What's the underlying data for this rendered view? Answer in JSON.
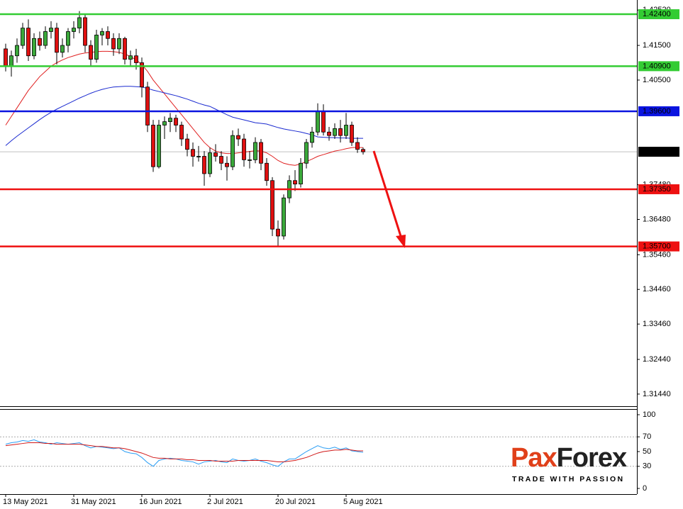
{
  "chart_data": {
    "type": "candlestick",
    "categories": [
      "13 May 2021",
      null,
      null,
      null,
      null,
      null,
      null,
      null,
      null,
      null,
      null,
      null,
      "31 May 2021",
      null,
      null,
      null,
      null,
      null,
      null,
      null,
      null,
      null,
      null,
      null,
      "16 Jun 2021",
      null,
      null,
      null,
      null,
      null,
      null,
      null,
      null,
      null,
      null,
      null,
      "2 Jul 2021",
      null,
      null,
      null,
      null,
      null,
      null,
      null,
      null,
      null,
      null,
      null,
      "20 Jul 2021",
      null,
      null,
      null,
      null,
      null,
      null,
      null,
      null,
      null,
      null,
      null,
      "5 Aug 2021",
      null,
      null,
      null
    ],
    "open": [
      1.414,
      1.409,
      1.412,
      1.415,
      1.42,
      1.412,
      1.417,
      1.415,
      1.419,
      1.42,
      1.413,
      1.415,
      1.419,
      1.42,
      1.423,
      1.415,
      1.411,
      1.418,
      1.419,
      1.417,
      1.414,
      1.417,
      1.411,
      1.412,
      1.41,
      1.403,
      1.392,
      1.38,
      1.392,
      1.393,
      1.394,
      1.392,
      1.388,
      1.385,
      1.383,
      1.383,
      1.378,
      1.384,
      1.383,
      1.381,
      1.38,
      1.389,
      1.388,
      1.382,
      1.382,
      1.387,
      1.381,
      1.376,
      1.362,
      1.36,
      1.371,
      1.376,
      1.375,
      1.381,
      1.387,
      1.39,
      1.396,
      1.39,
      1.389,
      1.391,
      1.389,
      1.392,
      1.387,
      1.385
    ],
    "high": [
      1.4155,
      1.4135,
      1.417,
      1.4215,
      1.4225,
      1.4185,
      1.419,
      1.4205,
      1.422,
      1.4215,
      1.417,
      1.42,
      1.422,
      1.4249,
      1.424,
      1.4165,
      1.4195,
      1.42,
      1.4205,
      1.4185,
      1.4185,
      1.4175,
      1.4135,
      1.414,
      1.4115,
      1.4045,
      1.3935,
      1.3935,
      1.3945,
      1.3955,
      1.395,
      1.393,
      1.3895,
      1.387,
      1.386,
      1.3845,
      1.3855,
      1.3865,
      1.3845,
      1.383,
      1.3905,
      1.391,
      1.3895,
      1.3845,
      1.3885,
      1.388,
      1.3825,
      1.377,
      1.3645,
      1.372,
      1.3775,
      1.379,
      1.3825,
      1.388,
      1.3915,
      1.3983,
      1.398,
      1.3915,
      1.3925,
      1.3935,
      1.3955,
      1.393,
      1.3885,
      1.3855
    ],
    "low": [
      1.4075,
      1.406,
      1.41,
      1.414,
      1.4105,
      1.411,
      1.4135,
      1.414,
      1.417,
      1.4095,
      1.4115,
      1.413,
      1.417,
      1.4185,
      1.413,
      1.409,
      1.41,
      1.415,
      1.415,
      1.412,
      1.4125,
      1.4095,
      1.409,
      1.408,
      1.4,
      1.39,
      1.3785,
      1.3795,
      1.388,
      1.39,
      1.39,
      1.386,
      1.383,
      1.38,
      1.3815,
      1.3745,
      1.377,
      1.3815,
      1.379,
      1.376,
      1.379,
      1.386,
      1.38,
      1.3795,
      1.381,
      1.379,
      1.3745,
      1.36,
      1.3571,
      1.359,
      1.3695,
      1.373,
      1.374,
      1.3795,
      1.3855,
      1.389,
      1.389,
      1.3875,
      1.388,
      1.387,
      1.388,
      1.386,
      1.384,
      1.3835
    ],
    "close": [
      1.409,
      1.412,
      1.415,
      1.42,
      1.412,
      1.417,
      1.415,
      1.419,
      1.42,
      1.413,
      1.415,
      1.419,
      1.42,
      1.423,
      1.415,
      1.411,
      1.418,
      1.419,
      1.417,
      1.414,
      1.417,
      1.411,
      1.412,
      1.41,
      1.403,
      1.392,
      1.38,
      1.392,
      1.393,
      1.394,
      1.392,
      1.388,
      1.385,
      1.383,
      1.383,
      1.378,
      1.384,
      1.383,
      1.381,
      1.38,
      1.389,
      1.388,
      1.382,
      1.382,
      1.387,
      1.381,
      1.376,
      1.362,
      1.36,
      1.371,
      1.376,
      1.375,
      1.381,
      1.387,
      1.39,
      1.396,
      1.39,
      1.389,
      1.391,
      1.389,
      1.392,
      1.387,
      1.385,
      1.3843
    ],
    "up_color": "#3aa83a",
    "down_color": "#e01010",
    "moving_averages": [
      {
        "color": "#e02020",
        "values": [
          1.392,
          1.3945,
          1.397,
          1.3995,
          1.402,
          1.404,
          1.406,
          1.4075,
          1.409,
          1.41,
          1.4108,
          1.4115,
          1.412,
          1.4125,
          1.4128,
          1.413,
          1.4132,
          1.4133,
          1.4133,
          1.4132,
          1.413,
          1.4125,
          1.4118,
          1.4108,
          1.4095,
          1.4075,
          1.405,
          1.403,
          1.401,
          1.399,
          1.397,
          1.395,
          1.393,
          1.391,
          1.389,
          1.387,
          1.3855,
          1.3845,
          1.384,
          1.3838,
          1.3838,
          1.384,
          1.3842,
          1.3844,
          1.3846,
          1.3845,
          1.384,
          1.383,
          1.3818,
          1.381,
          1.3806,
          1.3804,
          1.3808,
          1.3815,
          1.3822,
          1.383,
          1.3835,
          1.384,
          1.3845,
          1.3848,
          1.3852,
          1.3855,
          1.3856,
          1.3855
        ]
      },
      {
        "color": "#1a2ad0",
        "values": [
          1.3861,
          1.3875,
          1.3888,
          1.39,
          1.3912,
          1.3924,
          1.3936,
          1.3947,
          1.3957,
          1.3966,
          1.3974,
          1.3982,
          1.399,
          1.3998,
          1.4005,
          1.4012,
          1.4018,
          1.4023,
          1.4027,
          1.403,
          1.4031,
          1.4032,
          1.4032,
          1.4031,
          1.403,
          1.4026,
          1.4021,
          1.4017,
          1.4013,
          1.4009,
          1.4005,
          1.4,
          1.3995,
          1.3989,
          1.3983,
          1.3978,
          1.3974,
          1.3966,
          1.3958,
          1.395,
          1.3943,
          1.3939,
          1.3935,
          1.3931,
          1.3927,
          1.3925,
          1.3923,
          1.3918,
          1.3913,
          1.3909,
          1.3906,
          1.3903,
          1.39,
          1.3896,
          1.3892,
          1.3886,
          1.3885,
          1.3884,
          1.3884,
          1.3883,
          1.3883,
          1.3882,
          1.3882,
          1.3882
        ]
      }
    ],
    "ylim": [
      1.3109,
      1.4281
    ],
    "yticks": [
      {
        "value": 1.4252,
        "label": "1.42520"
      },
      {
        "value": 1.415,
        "label": "1.41500"
      },
      {
        "value": 1.405,
        "label": "1.40500"
      },
      {
        "value": 1.3748,
        "label": "1.37480"
      },
      {
        "value": 1.3648,
        "label": "1.36480"
      },
      {
        "value": 1.3546,
        "label": "1.35460"
      },
      {
        "value": 1.3446,
        "label": "1.34460"
      },
      {
        "value": 1.3346,
        "label": "1.33460"
      },
      {
        "value": 1.3244,
        "label": "1.32440"
      },
      {
        "value": 1.3144,
        "label": "1.31440"
      }
    ],
    "levels": [
      {
        "value": 1.424,
        "label": "1.42400",
        "color": "#33cc33"
      },
      {
        "value": 1.409,
        "label": "1.40900",
        "color": "#33cc33"
      },
      {
        "value": 1.396,
        "label": "1.39600",
        "color": "#0a14e0"
      },
      {
        "value": 1.3735,
        "label": "1.37350",
        "color": "#ee1111"
      },
      {
        "value": 1.357,
        "label": "1.35700",
        "color": "#ee1111"
      }
    ],
    "last_price": 1.38431,
    "oscillator": {
      "ylim": [
        -7.7,
        107.7
      ],
      "yticks": [
        0,
        30,
        50,
        70,
        100
      ],
      "dotted_levels": [
        30,
        70
      ],
      "series": [
        {
          "color": "#2a9df4",
          "values": [
            60,
            62,
            63,
            65,
            64,
            66,
            63,
            62,
            60,
            62,
            61,
            60,
            61,
            62,
            58,
            55,
            57,
            56,
            55,
            54,
            55,
            50,
            48,
            47,
            42,
            35,
            30,
            38,
            40,
            41,
            40,
            38,
            37,
            36,
            33,
            36,
            37,
            38,
            36,
            35,
            40,
            38,
            37,
            38,
            40,
            37,
            35,
            32,
            30,
            36,
            40,
            40,
            45,
            50,
            54,
            58,
            55,
            54,
            56,
            53,
            55,
            51,
            50,
            49
          ]
        },
        {
          "color": "#d01818",
          "values": [
            58,
            59,
            60,
            61,
            62,
            62,
            62,
            61,
            61,
            60,
            60,
            60,
            60,
            60,
            59,
            58,
            57,
            57,
            56,
            55,
            55,
            54,
            52,
            50,
            48,
            45,
            42,
            41,
            41,
            40,
            40,
            40,
            39,
            39,
            38,
            38,
            38,
            37,
            37,
            37,
            37,
            38,
            38,
            38,
            38,
            38,
            38,
            37,
            36,
            36,
            37,
            38,
            40,
            42,
            45,
            48,
            50,
            51,
            52,
            52,
            53,
            52,
            51,
            51
          ]
        }
      ]
    }
  },
  "logo": {
    "parts": [
      "Pa",
      "x",
      "Forex"
    ],
    "tagline": "TRADE WITH PASSION"
  }
}
